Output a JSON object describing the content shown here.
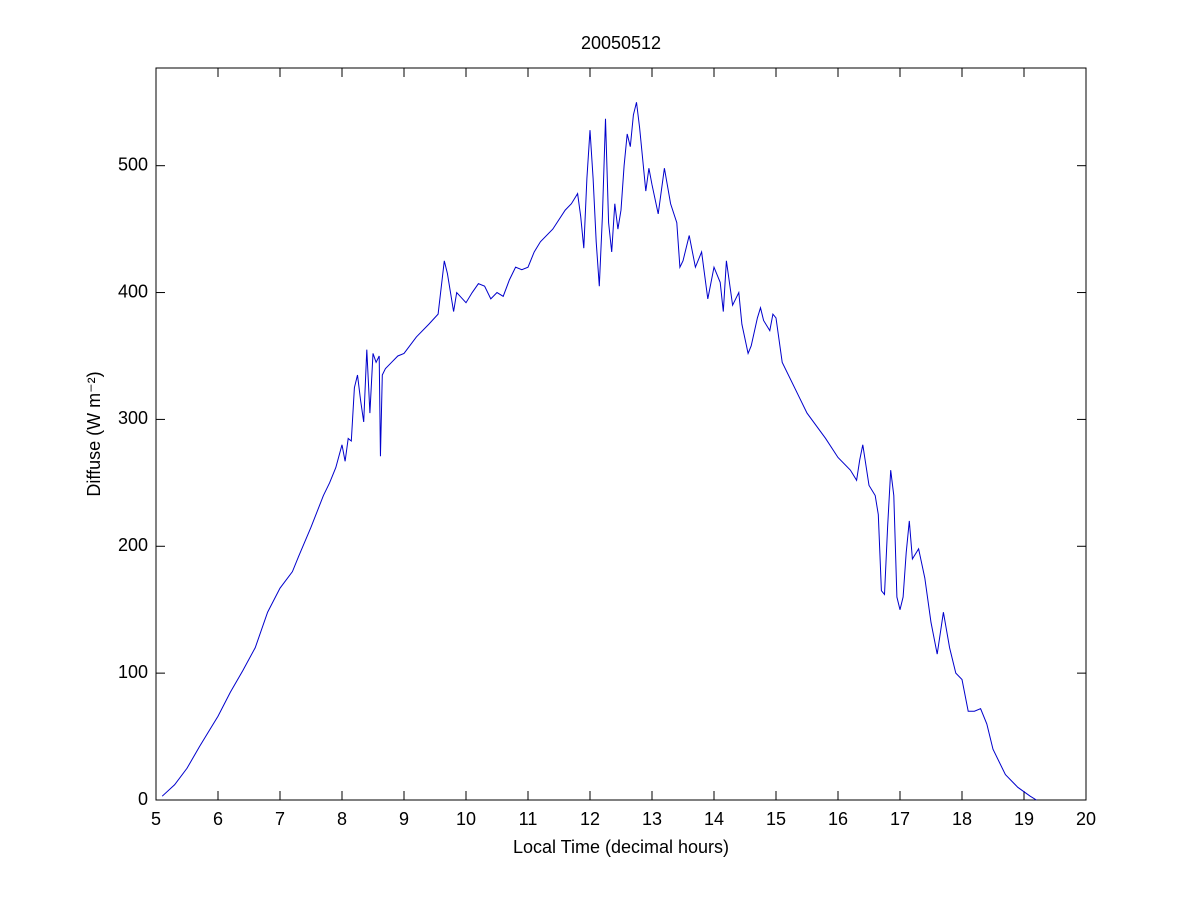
{
  "chart_data": {
    "type": "line",
    "title": "20050512",
    "x_label": "Local Time (decimal hours)",
    "y_label": "Diffuse (W m⁻²)",
    "xlim": [
      5,
      20
    ],
    "ylim": [
      0,
      577
    ],
    "xticks": [
      5,
      6,
      7,
      8,
      9,
      10,
      11,
      12,
      13,
      14,
      15,
      16,
      17,
      18,
      19,
      20
    ],
    "yticks": [
      0,
      100,
      200,
      300,
      400,
      500
    ],
    "grid": false,
    "series": [
      {
        "color": "#0000cc",
        "x": [
          5.1,
          5.3,
          5.5,
          5.7,
          5.9,
          6.0,
          6.2,
          6.4,
          6.6,
          6.8,
          7.0,
          7.2,
          7.3,
          7.5,
          7.7,
          7.8,
          7.9,
          8.0,
          8.05,
          8.1,
          8.15,
          8.2,
          8.25,
          8.3,
          8.35,
          8.4,
          8.45,
          8.5,
          8.55,
          8.6,
          8.62,
          8.65,
          8.7,
          8.8,
          8.9,
          9.0,
          9.2,
          9.4,
          9.55,
          9.65,
          9.7,
          9.75,
          9.8,
          9.85,
          10.0,
          10.1,
          10.2,
          10.3,
          10.4,
          10.5,
          10.6,
          10.7,
          10.8,
          10.9,
          11.0,
          11.1,
          11.2,
          11.4,
          11.6,
          11.7,
          11.8,
          11.85,
          11.9,
          11.95,
          12.0,
          12.05,
          12.1,
          12.15,
          12.2,
          12.25,
          12.3,
          12.35,
          12.4,
          12.45,
          12.5,
          12.55,
          12.6,
          12.65,
          12.7,
          12.75,
          12.8,
          12.9,
          12.95,
          13.0,
          13.1,
          13.2,
          13.3,
          13.4,
          13.45,
          13.5,
          13.6,
          13.7,
          13.8,
          13.9,
          14.0,
          14.1,
          14.15,
          14.2,
          14.3,
          14.4,
          14.45,
          14.55,
          14.6,
          14.7,
          14.75,
          14.8,
          14.9,
          14.95,
          15.0,
          15.1,
          15.3,
          15.5,
          15.8,
          16.0,
          16.2,
          16.3,
          16.35,
          16.4,
          16.5,
          16.6,
          16.65,
          16.7,
          16.75,
          16.8,
          16.85,
          16.9,
          16.95,
          17.0,
          17.05,
          17.1,
          17.15,
          17.2,
          17.3,
          17.4,
          17.5,
          17.6,
          17.7,
          17.8,
          17.9,
          18.0,
          18.1,
          18.2,
          18.3,
          18.4,
          18.5,
          18.7,
          18.9,
          19.1,
          19.2
        ],
        "values": [
          3,
          12,
          25,
          42,
          58,
          66,
          85,
          102,
          120,
          148,
          167,
          180,
          192,
          215,
          240,
          250,
          262,
          280,
          267,
          285,
          283,
          325,
          335,
          315,
          298,
          355,
          305,
          352,
          345,
          350,
          271,
          335,
          340,
          345,
          350,
          352,
          365,
          375,
          383,
          425,
          415,
          400,
          385,
          400,
          392,
          400,
          407,
          405,
          395,
          400,
          397,
          410,
          420,
          418,
          420,
          432,
          440,
          450,
          465,
          470,
          478,
          460,
          435,
          490,
          528,
          490,
          440,
          405,
          460,
          537,
          455,
          432,
          470,
          450,
          465,
          500,
          525,
          515,
          540,
          550,
          530,
          480,
          498,
          485,
          462,
          498,
          470,
          455,
          420,
          425,
          445,
          420,
          432,
          395,
          420,
          408,
          385,
          425,
          390,
          400,
          375,
          352,
          358,
          380,
          388,
          378,
          370,
          383,
          380,
          345,
          325,
          305,
          285,
          270,
          260,
          252,
          268,
          280,
          248,
          240,
          225,
          165,
          162,
          215,
          260,
          240,
          160,
          150,
          160,
          195,
          220,
          190,
          198,
          175,
          140,
          115,
          148,
          120,
          100,
          95,
          70,
          70,
          72,
          60,
          40,
          20,
          10,
          3,
          0
        ]
      }
    ]
  }
}
